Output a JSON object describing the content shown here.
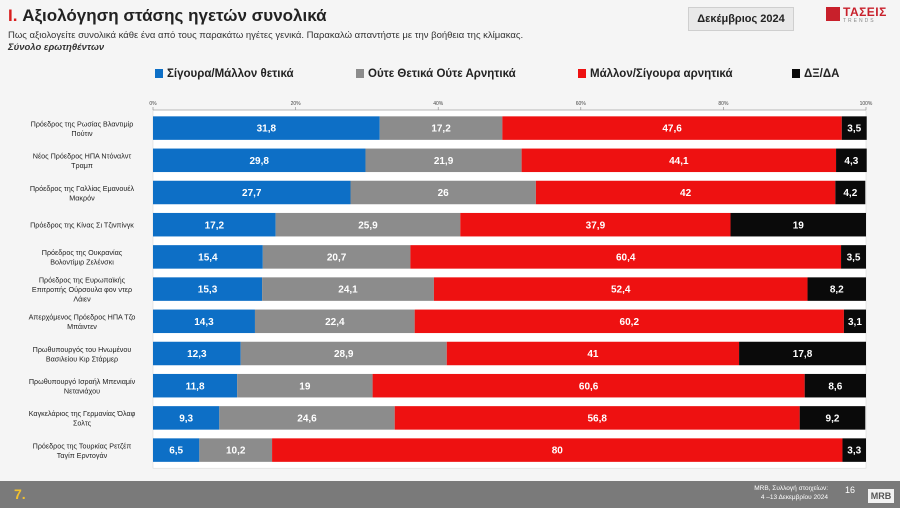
{
  "header": {
    "section_num": "I.",
    "title": "Αξιολόγηση στάσης ηγετών συνολικά",
    "subtitle": "Πως αξιολογείτε συνολικά κάθε ένα από τους παρακάτω ηγέτες γενικά. Παρακαλώ απαντήστε με την βοήθεια της κλίμακας.",
    "base": "Σύνολο ερωτηθέντων",
    "date": "Δεκέμβριος 2024"
  },
  "logo": {
    "name": "ΤΑΣΕΙΣ",
    "sub": "TRENDS"
  },
  "footer": {
    "page_number": "7.",
    "source_line1": "MRB, Συλλογή στοιχείων:",
    "source_line2": "4 –13 Δεκεμβρίου 2024",
    "slide_number": "16",
    "brand": "MRB"
  },
  "colors": {
    "positive": "#0d6fc6",
    "neutral": "#8c8c8c",
    "negative": "#ee1111",
    "dk": "#0a0a0a",
    "title_accent": "#d81e1e",
    "footer_bg": "#7a7a7a",
    "page_number": "#f2c12e"
  },
  "chart_data": {
    "type": "bar",
    "orientation": "horizontal",
    "stacked": true,
    "xlim": [
      0,
      100
    ],
    "x_ticks": [
      "0%",
      "20%",
      "40%",
      "60%",
      "80%",
      "100%"
    ],
    "legend_position": "top",
    "categories": [
      [
        "Πρόεδρος της Ρωσίας Βλαντιμίρ",
        "Πούτιν"
      ],
      [
        "Νέος Πρόεδρος ΗΠΑ Ντόναλντ",
        "Τραμπ"
      ],
      [
        "Πρόεδρος της Γαλλίας Εμανουέλ",
        "Μακρόν"
      ],
      [
        "Πρόεδρος της Κίνας Σι Τζινπίνγκ"
      ],
      [
        "Πρόεδρος της Ουκρανίας",
        "Βολοντίμιρ Ζελένσκι"
      ],
      [
        "Πρόεδρος της Ευρωπαϊκής",
        "Επιτροπής Ούρσουλα φον ντερ",
        "Λάιεν"
      ],
      [
        "Απερχόμενος Πρόεδρος ΗΠΑ Τζο",
        "Μπάιντεν"
      ],
      [
        "Πρωθυπουργός του Ηνωμένου",
        "Βασιλείου Κιρ Στάρμερ"
      ],
      [
        "Πρωθυπουργό Ισραήλ Μπενιαμίν",
        "Νετανιάχου"
      ],
      [
        "Καγκελάριος της Γερμανίας Όλαφ",
        "Σολτς"
      ],
      [
        "Πρόεδρος της Τουρκίας Ρετζέπ",
        "Ταγίπ Ερντογάν"
      ]
    ],
    "series": [
      {
        "name": "Σίγουρα/Μάλλον θετικά",
        "color_key": "positive",
        "values": [
          31.8,
          29.8,
          27.7,
          17.2,
          15.4,
          15.3,
          14.3,
          12.3,
          11.8,
          9.3,
          6.5
        ],
        "labels": [
          "31,8",
          "29,8",
          "27,7",
          "17,2",
          "15,4",
          "15,3",
          "14,3",
          "12,3",
          "11,8",
          "9,3",
          "6,5"
        ]
      },
      {
        "name": "Ούτε Θετικά Ούτε Αρνητικά",
        "color_key": "neutral",
        "values": [
          17.2,
          21.9,
          26,
          25.9,
          20.7,
          24.1,
          22.4,
          28.9,
          19,
          24.6,
          10.2
        ],
        "labels": [
          "17,2",
          "21,9",
          "26",
          "25,9",
          "20,7",
          "24,1",
          "22,4",
          "28,9",
          "19",
          "24,6",
          "10,2"
        ]
      },
      {
        "name": "Μάλλον/Σίγουρα αρνητικά",
        "color_key": "negative",
        "values": [
          47.6,
          44.1,
          42,
          37.9,
          60.4,
          52.4,
          60.2,
          41,
          60.6,
          56.8,
          80
        ],
        "labels": [
          "47,6",
          "44,1",
          "42",
          "37,9",
          "60,4",
          "52,4",
          "60,2",
          "41",
          "60,6",
          "56,8",
          "80"
        ]
      },
      {
        "name": "ΔΞ/ΔΑ",
        "color_key": "dk",
        "values": [
          3.5,
          4.3,
          4.2,
          19,
          3.5,
          8.2,
          3.1,
          17.8,
          8.6,
          9.2,
          3.3
        ],
        "labels": [
          "3,5",
          "4,3",
          "4,2",
          "19",
          "3,5",
          "8,2",
          "3,1",
          "17,8",
          "8,6",
          "9,2",
          "3,3"
        ]
      }
    ]
  }
}
